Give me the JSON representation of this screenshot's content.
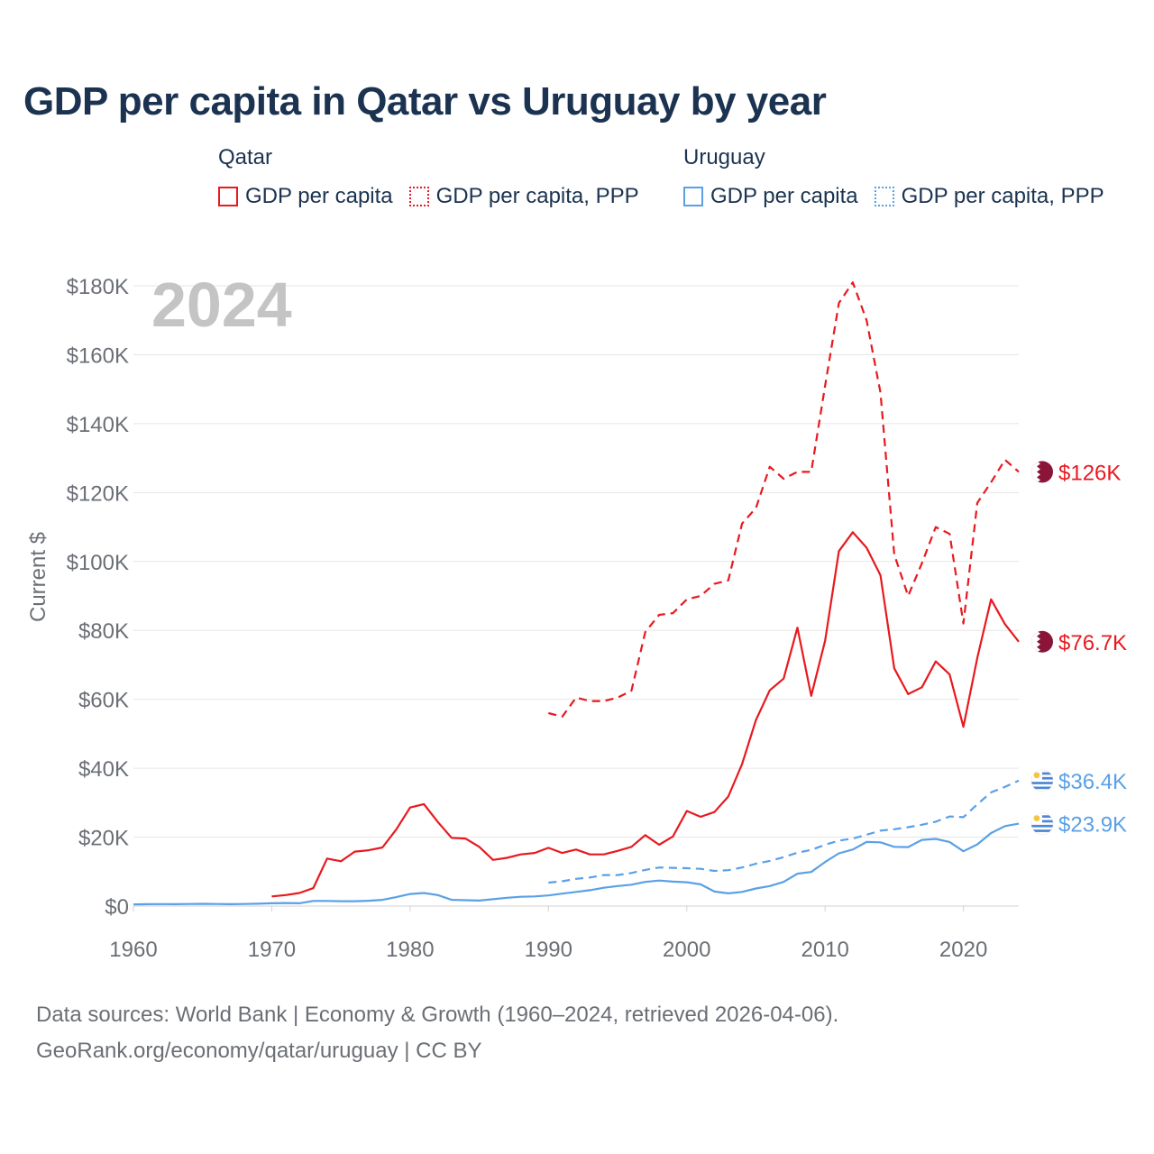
{
  "title": "GDP per capita in Qatar vs Uruguay by year",
  "legend": {
    "groups": [
      {
        "country": "Qatar",
        "items": [
          {
            "label": "GDP per capita",
            "color": "#e8191f",
            "style": "solid"
          },
          {
            "label": "GDP per capita, PPP",
            "color": "#e8191f",
            "style": "dotted"
          }
        ]
      },
      {
        "country": "Uruguay",
        "items": [
          {
            "label": "GDP per capita",
            "color": "#5aa0e6",
            "style": "solid"
          },
          {
            "label": "GDP per capita, PPP",
            "color": "#5aa0e6",
            "style": "dotted"
          }
        ]
      }
    ]
  },
  "footer": {
    "line1": "Data sources: World Bank | Economy & Growth (1960–2024, retrieved 2026-04-06).",
    "line2": "GeoRank.org/economy/qatar/uruguay | CC BY"
  },
  "chart_data": {
    "type": "line",
    "year_watermark": "2024",
    "ylabel": "Current $",
    "xlim": [
      1960,
      2024
    ],
    "ylim": [
      0,
      180000
    ],
    "xticks": [
      1960,
      1970,
      1980,
      1990,
      2000,
      2010,
      2020
    ],
    "xtick_labels": [
      "1960",
      "1970",
      "1980",
      "1990",
      "2000",
      "2010",
      "2020"
    ],
    "yticks": [
      0,
      20000,
      40000,
      60000,
      80000,
      100000,
      120000,
      140000,
      160000,
      180000
    ],
    "ytick_labels": [
      "$0",
      "$20K",
      "$40K",
      "$60K",
      "$80K",
      "$100K",
      "$120K",
      "$140K",
      "$160K",
      "$180K"
    ],
    "grid": true,
    "series": [
      {
        "name": "Qatar GDP per capita, PPP",
        "color": "#e8191f",
        "dash": "dashed",
        "end_label": "$126K",
        "flag": "qatar",
        "x": [
          1990,
          1991,
          1992,
          1993,
          1994,
          1995,
          1996,
          1997,
          1998,
          1999,
          2000,
          2001,
          2002,
          2003,
          2004,
          2005,
          2006,
          2007,
          2008,
          2009,
          2010,
          2011,
          2012,
          2013,
          2014,
          2015,
          2016,
          2017,
          2018,
          2019,
          2020,
          2021,
          2022,
          2023,
          2024
        ],
        "y": [
          56000,
          55000,
          60500,
          59500,
          59500,
          60500,
          62500,
          79500,
          84500,
          85000,
          89000,
          90000,
          93500,
          94500,
          111000,
          115500,
          127500,
          124000,
          126000,
          126000,
          151000,
          175000,
          181000,
          170000,
          149000,
          102000,
          90000,
          99500,
          110000,
          108000,
          82000,
          117000,
          123000,
          129500,
          126000
        ]
      },
      {
        "name": "Qatar GDP per capita",
        "color": "#e8191f",
        "dash": "solid",
        "end_label": "$76.7K",
        "flag": "qatar",
        "x": [
          1970,
          1971,
          1972,
          1973,
          1974,
          1975,
          1976,
          1977,
          1978,
          1979,
          1980,
          1981,
          1982,
          1983,
          1984,
          1985,
          1986,
          1987,
          1988,
          1989,
          1990,
          1991,
          1992,
          1993,
          1994,
          1995,
          1996,
          1997,
          1998,
          1999,
          2000,
          2001,
          2002,
          2003,
          2004,
          2005,
          2006,
          2007,
          2008,
          2009,
          2010,
          2011,
          2012,
          2013,
          2014,
          2015,
          2016,
          2017,
          2018,
          2019,
          2020,
          2021,
          2022,
          2023,
          2024
        ],
        "y": [
          2800,
          3200,
          3800,
          5200,
          13800,
          13000,
          15800,
          16200,
          17000,
          22200,
          28600,
          29600,
          24400,
          19800,
          19600,
          17200,
          13400,
          14000,
          15000,
          15400,
          16900,
          15400,
          16400,
          15000,
          15000,
          16000,
          17200,
          20600,
          17800,
          20200,
          27600,
          25900,
          27300,
          31800,
          41200,
          54000,
          62600,
          66000,
          80800,
          61000,
          77000,
          103000,
          108500,
          104000,
          96000,
          69000,
          61500,
          63500,
          71000,
          67200,
          52000,
          72000,
          89000,
          81800,
          76700
        ]
      },
      {
        "name": "Uruguay GDP per capita, PPP",
        "color": "#5aa0e6",
        "dash": "dashed",
        "end_label": "$36.4K",
        "flag": "uruguay",
        "x": [
          1990,
          1991,
          1992,
          1993,
          1994,
          1995,
          1996,
          1997,
          1998,
          1999,
          2000,
          2001,
          2002,
          2003,
          2004,
          2005,
          2006,
          2007,
          2008,
          2009,
          2010,
          2011,
          2012,
          2013,
          2014,
          2015,
          2016,
          2017,
          2018,
          2019,
          2020,
          2021,
          2022,
          2023,
          2024
        ],
        "y": [
          6800,
          7200,
          7900,
          8300,
          9000,
          9000,
          9600,
          10500,
          11200,
          11100,
          11000,
          10800,
          10200,
          10400,
          11200,
          12300,
          13100,
          14200,
          15500,
          16300,
          17800,
          19000,
          19600,
          20700,
          21900,
          22300,
          22900,
          23600,
          24500,
          26000,
          25800,
          29500,
          33000,
          34600,
          36400
        ]
      },
      {
        "name": "Uruguay GDP per capita",
        "color": "#5aa0e6",
        "dash": "solid",
        "end_label": "$23.9K",
        "flag": "uruguay",
        "x": [
          1960,
          1961,
          1962,
          1963,
          1964,
          1965,
          1966,
          1967,
          1968,
          1969,
          1970,
          1971,
          1972,
          1973,
          1974,
          1975,
          1976,
          1977,
          1978,
          1979,
          1980,
          1981,
          1982,
          1983,
          1984,
          1985,
          1986,
          1987,
          1988,
          1989,
          1990,
          1991,
          1992,
          1993,
          1994,
          1995,
          1996,
          1997,
          1998,
          1999,
          2000,
          2001,
          2002,
          2003,
          2004,
          2005,
          2006,
          2007,
          2008,
          2009,
          2010,
          2011,
          2012,
          2013,
          2014,
          2015,
          2016,
          2017,
          2018,
          2019,
          2020,
          2021,
          2022,
          2023,
          2024
        ],
        "y": [
          500,
          550,
          580,
          560,
          600,
          650,
          600,
          560,
          600,
          680,
          820,
          900,
          800,
          1500,
          1500,
          1400,
          1400,
          1550,
          1800,
          2600,
          3500,
          3800,
          3200,
          1800,
          1700,
          1600,
          2000,
          2400,
          2700,
          2800,
          3100,
          3600,
          4100,
          4600,
          5300,
          5800,
          6200,
          7000,
          7400,
          7100,
          6900,
          6300,
          4200,
          3700,
          4100,
          5100,
          5800,
          7000,
          9400,
          9900,
          12800,
          15300,
          16400,
          18600,
          18500,
          17200,
          17100,
          19200,
          19500,
          18600,
          15900,
          17900,
          21200,
          23200,
          23900
        ]
      }
    ]
  }
}
